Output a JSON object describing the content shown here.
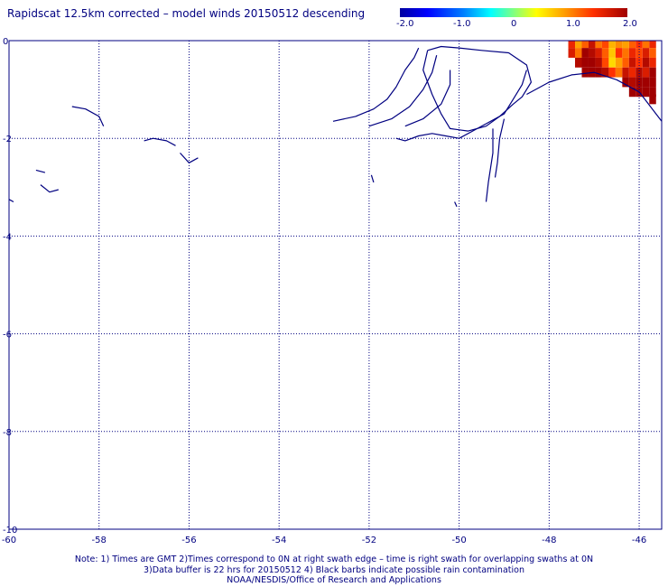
{
  "title": "Rapidscat 12.5km corrected – model winds 20150512 descending",
  "colorbar": {
    "labels": [
      "-2.0",
      "-1.0",
      "0",
      "1.0",
      "2.0"
    ],
    "range": [
      -2.0,
      2.0
    ],
    "colors": [
      "#0000a0",
      "#0000ff",
      "#0080ff",
      "#00ffff",
      "#80ff80",
      "#ffff00",
      "#ffa000",
      "#ff3000",
      "#a00000"
    ]
  },
  "chart_data": {
    "type": "heatmap",
    "title": "Rapidscat 12.5km corrected – model winds 20150512 descending",
    "xlabel": "",
    "ylabel": "",
    "xlim": [
      -60,
      -45.5
    ],
    "ylim": [
      -10,
      0
    ],
    "x_ticks": [
      "-60",
      "-58",
      "-56",
      "-54",
      "-52",
      "-50",
      "-48",
      "-46"
    ],
    "y_ticks": [
      "0",
      "-2",
      "-4",
      "-6",
      "-8",
      "-10"
    ],
    "grid": true,
    "value_range": [
      -2.0,
      2.0
    ],
    "cells": [
      {
        "lon": -47.5,
        "lat": -0.05,
        "v": 1.6
      },
      {
        "lon": -47.35,
        "lat": -0.05,
        "v": 1.0
      },
      {
        "lon": -47.2,
        "lat": -0.05,
        "v": 1.3
      },
      {
        "lon": -47.05,
        "lat": -0.05,
        "v": 1.8
      },
      {
        "lon": -46.9,
        "lat": -0.05,
        "v": 1.2
      },
      {
        "lon": -46.75,
        "lat": -0.05,
        "v": 1.4
      },
      {
        "lon": -46.6,
        "lat": -0.05,
        "v": 0.9
      },
      {
        "lon": -46.45,
        "lat": -0.05,
        "v": 1.1
      },
      {
        "lon": -46.3,
        "lat": -0.05,
        "v": 1.0
      },
      {
        "lon": -46.15,
        "lat": -0.05,
        "v": 1.3
      },
      {
        "lon": -46.0,
        "lat": -0.05,
        "v": 1.5
      },
      {
        "lon": -45.85,
        "lat": -0.05,
        "v": 1.2
      },
      {
        "lon": -45.7,
        "lat": -0.05,
        "v": 1.6
      },
      {
        "lon": -47.5,
        "lat": -0.25,
        "v": 1.7
      },
      {
        "lon": -47.35,
        "lat": -0.25,
        "v": 1.2
      },
      {
        "lon": -47.2,
        "lat": -0.25,
        "v": 2.0
      },
      {
        "lon": -47.05,
        "lat": -0.25,
        "v": 1.9
      },
      {
        "lon": -46.9,
        "lat": -0.25,
        "v": 1.7
      },
      {
        "lon": -46.75,
        "lat": -0.25,
        "v": 1.3
      },
      {
        "lon": -46.6,
        "lat": -0.25,
        "v": 0.8
      },
      {
        "lon": -46.45,
        "lat": -0.25,
        "v": 1.5
      },
      {
        "lon": -46.3,
        "lat": -0.25,
        "v": 1.2
      },
      {
        "lon": -46.15,
        "lat": -0.25,
        "v": 1.6
      },
      {
        "lon": -46.0,
        "lat": -0.25,
        "v": 1.4
      },
      {
        "lon": -45.85,
        "lat": -0.25,
        "v": 1.7
      },
      {
        "lon": -45.7,
        "lat": -0.25,
        "v": 1.3
      },
      {
        "lon": -47.35,
        "lat": -0.45,
        "v": 1.9
      },
      {
        "lon": -47.2,
        "lat": -0.45,
        "v": 2.0
      },
      {
        "lon": -47.05,
        "lat": -0.45,
        "v": 2.0
      },
      {
        "lon": -46.9,
        "lat": -0.45,
        "v": 1.9
      },
      {
        "lon": -46.75,
        "lat": -0.45,
        "v": 1.4
      },
      {
        "lon": -46.6,
        "lat": -0.45,
        "v": 0.7
      },
      {
        "lon": -46.45,
        "lat": -0.45,
        "v": 1.0
      },
      {
        "lon": -46.3,
        "lat": -0.45,
        "v": 1.3
      },
      {
        "lon": -46.15,
        "lat": -0.45,
        "v": 1.8
      },
      {
        "lon": -46.0,
        "lat": -0.45,
        "v": 1.5
      },
      {
        "lon": -45.85,
        "lat": -0.45,
        "v": 1.9
      },
      {
        "lon": -45.7,
        "lat": -0.45,
        "v": 1.6
      },
      {
        "lon": -47.2,
        "lat": -0.65,
        "v": 2.0
      },
      {
        "lon": -47.05,
        "lat": -0.65,
        "v": 2.0
      },
      {
        "lon": -46.9,
        "lat": -0.65,
        "v": 2.0
      },
      {
        "lon": -46.75,
        "lat": -0.65,
        "v": 1.9
      },
      {
        "lon": -46.6,
        "lat": -0.65,
        "v": 1.5
      },
      {
        "lon": -46.45,
        "lat": -0.65,
        "v": 1.2
      },
      {
        "lon": -46.3,
        "lat": -0.65,
        "v": 1.8
      },
      {
        "lon": -46.15,
        "lat": -0.65,
        "v": 1.6
      },
      {
        "lon": -46.0,
        "lat": -0.65,
        "v": 1.9
      },
      {
        "lon": -45.85,
        "lat": -0.65,
        "v": 1.7
      },
      {
        "lon": -45.7,
        "lat": -0.65,
        "v": 2.0
      },
      {
        "lon": -46.3,
        "lat": -0.85,
        "v": 2.0
      },
      {
        "lon": -46.15,
        "lat": -0.85,
        "v": 1.9
      },
      {
        "lon": -46.0,
        "lat": -0.85,
        "v": 2.0
      },
      {
        "lon": -45.85,
        "lat": -0.85,
        "v": 2.0
      },
      {
        "lon": -45.7,
        "lat": -0.85,
        "v": 2.0
      },
      {
        "lon": -46.15,
        "lat": -1.05,
        "v": 2.0
      },
      {
        "lon": -46.0,
        "lat": -1.05,
        "v": 2.0
      },
      {
        "lon": -45.85,
        "lat": -1.05,
        "v": 2.0
      },
      {
        "lon": -45.7,
        "lat": -1.05,
        "v": 2.0
      },
      {
        "lon": -45.7,
        "lat": -1.2,
        "v": 2.0
      }
    ],
    "coastlines": [
      [
        [
          -52.8,
          -1.65
        ],
        [
          -52.3,
          -1.55
        ],
        [
          -51.9,
          -1.4
        ],
        [
          -51.6,
          -1.2
        ],
        [
          -51.4,
          -0.95
        ],
        [
          -51.2,
          -0.6
        ],
        [
          -51.0,
          -0.35
        ],
        [
          -50.9,
          -0.15
        ]
      ],
      [
        [
          -52.0,
          -1.75
        ],
        [
          -51.5,
          -1.6
        ],
        [
          -51.1,
          -1.35
        ],
        [
          -50.8,
          -1.0
        ],
        [
          -50.6,
          -0.65
        ],
        [
          -50.5,
          -0.3
        ]
      ],
      [
        [
          -51.2,
          -1.75
        ],
        [
          -50.8,
          -1.6
        ],
        [
          -50.4,
          -1.3
        ],
        [
          -50.2,
          -0.9
        ],
        [
          -50.2,
          -0.6
        ]
      ],
      [
        [
          -50.7,
          -0.2
        ],
        [
          -50.4,
          -0.12
        ],
        [
          -50.0,
          -0.15
        ],
        [
          -49.5,
          -0.2
        ],
        [
          -48.9,
          -0.25
        ],
        [
          -48.5,
          -0.5
        ],
        [
          -48.4,
          -0.85
        ],
        [
          -48.6,
          -1.15
        ],
        [
          -48.8,
          -1.3
        ],
        [
          -49.1,
          -1.55
        ],
        [
          -49.4,
          -1.75
        ],
        [
          -49.8,
          -1.85
        ],
        [
          -50.2,
          -1.8
        ],
        [
          -50.4,
          -1.5
        ],
        [
          -50.6,
          -1.1
        ],
        [
          -50.8,
          -0.6
        ],
        [
          -50.7,
          -0.2
        ]
      ],
      [
        [
          -51.4,
          -2.0
        ],
        [
          -51.2,
          -2.05
        ],
        [
          -50.9,
          -1.95
        ],
        [
          -50.6,
          -1.9
        ],
        [
          -50.3,
          -1.95
        ],
        [
          -50.0,
          -2.0
        ],
        [
          -49.7,
          -1.85
        ],
        [
          -49.4,
          -1.7
        ],
        [
          -49.0,
          -1.5
        ],
        [
          -48.8,
          -1.2
        ],
        [
          -48.6,
          -0.9
        ],
        [
          -48.5,
          -0.6
        ]
      ],
      [
        [
          -49.25,
          -1.8
        ],
        [
          -49.25,
          -2.3
        ],
        [
          -49.35,
          -2.9
        ],
        [
          -49.4,
          -3.3
        ]
      ],
      [
        [
          -49.0,
          -1.6
        ],
        [
          -49.1,
          -2.0
        ],
        [
          -49.15,
          -2.5
        ],
        [
          -49.2,
          -2.8
        ]
      ],
      [
        [
          -48.5,
          -1.1
        ],
        [
          -48.0,
          -0.85
        ],
        [
          -47.5,
          -0.7
        ],
        [
          -47.0,
          -0.65
        ],
        [
          -46.5,
          -0.8
        ],
        [
          -46.0,
          -1.05
        ],
        [
          -45.5,
          -1.65
        ]
      ],
      [
        [
          -58.6,
          -1.35
        ],
        [
          -58.3,
          -1.4
        ],
        [
          -58.0,
          -1.55
        ],
        [
          -57.9,
          -1.75
        ]
      ],
      [
        [
          -57.0,
          -2.05
        ],
        [
          -56.8,
          -2.0
        ],
        [
          -56.5,
          -2.05
        ],
        [
          -56.3,
          -2.15
        ]
      ],
      [
        [
          -56.2,
          -2.3
        ],
        [
          -56.0,
          -2.5
        ],
        [
          -55.8,
          -2.4
        ]
      ],
      [
        [
          -59.4,
          -2.65
        ],
        [
          -59.2,
          -2.7
        ]
      ],
      [
        [
          -59.3,
          -2.95
        ],
        [
          -59.1,
          -3.1
        ],
        [
          -58.9,
          -3.05
        ]
      ],
      [
        [
          -60.0,
          -3.25
        ],
        [
          -59.9,
          -3.3
        ]
      ],
      [
        [
          -51.95,
          -2.75
        ],
        [
          -51.9,
          -2.9
        ]
      ],
      [
        [
          -50.1,
          -3.3
        ],
        [
          -50.05,
          -3.4
        ]
      ]
    ]
  },
  "notes": [
    "Note: 1) Times are GMT 2)Times correspond to 0N at right swath edge – time is right swath for overlapping swaths at 0N",
    "3)Data buffer is 22 hrs for 20150512 4) Black barbs indicate possible rain contamination",
    "NOAA/NESDIS/Office of Research and Applications"
  ]
}
